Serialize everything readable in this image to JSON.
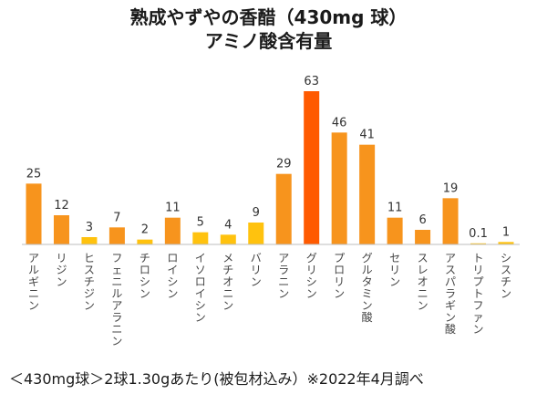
{
  "title": {
    "line1": "熟成やずやの香醋（430mg 球）",
    "line2": "アミノ酸含有量"
  },
  "footnote": "＜430mg球＞2球1.30gあたり(被包材込み）※2022年4月調べ",
  "colors": {
    "low": "#FFC20E",
    "mid": "#F7941D",
    "peak": "#FF5A00",
    "axis": "#BDBDBD"
  },
  "chart_data": {
    "type": "bar",
    "title": "熟成やずやの香醋（430mg 球）アミノ酸含有量",
    "categories": [
      "アルギニン",
      "リジン",
      "ヒスチジン",
      "フェニルアラニン",
      "チロシン",
      "ロイシン",
      "イソロイシン",
      "メチオニン",
      "バリン",
      "アラニン",
      "グリシン",
      "プロリン",
      "グルタミン酸",
      "セリン",
      "スレオニン",
      "アスパラギン酸",
      "トリプトファン",
      "シスチン"
    ],
    "values": [
      25,
      12,
      3,
      7,
      2,
      11,
      5,
      4,
      9,
      29,
      63,
      46,
      41,
      11,
      6,
      19,
      0.1,
      1
    ],
    "value_labels": [
      "25",
      "12",
      "3",
      "7",
      "2",
      "11",
      "5",
      "4",
      "9",
      "29",
      "63",
      "46",
      "41",
      "11",
      "6",
      "19",
      "0.1",
      "1"
    ],
    "bar_color_levels": [
      "mid",
      "mid",
      "low",
      "mid",
      "low",
      "mid",
      "low",
      "low",
      "low",
      "mid",
      "peak",
      "mid",
      "mid",
      "mid",
      "mid",
      "mid",
      "low",
      "low"
    ],
    "ylim": [
      0,
      63
    ],
    "xlabel": "",
    "ylabel": "",
    "grid": false,
    "legend": "none"
  }
}
